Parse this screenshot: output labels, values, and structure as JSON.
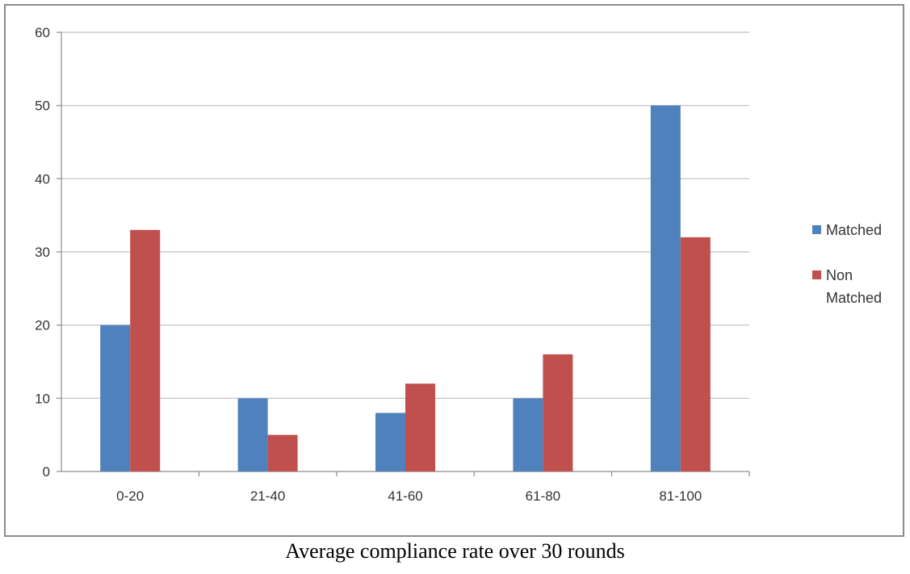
{
  "chart_data": {
    "type": "bar",
    "categories": [
      "0-20",
      "21-40",
      "41-60",
      "61-80",
      "81-100"
    ],
    "series": [
      {
        "name": "Matched",
        "values": [
          20,
          10,
          8,
          10,
          50
        ],
        "color": "#4f81bd"
      },
      {
        "name": "Non Matched",
        "values": [
          33,
          5,
          12,
          16,
          32
        ],
        "color": "#c0504d"
      }
    ],
    "ylim": [
      0,
      60
    ],
    "yticks": [
      0,
      10,
      20,
      30,
      40,
      50,
      60
    ],
    "grid": true,
    "legend_position": "right",
    "legend_labels": [
      [
        "Matched"
      ],
      [
        "Non",
        "Matched"
      ]
    ]
  },
  "caption": "Average compliance rate over 30 rounds"
}
